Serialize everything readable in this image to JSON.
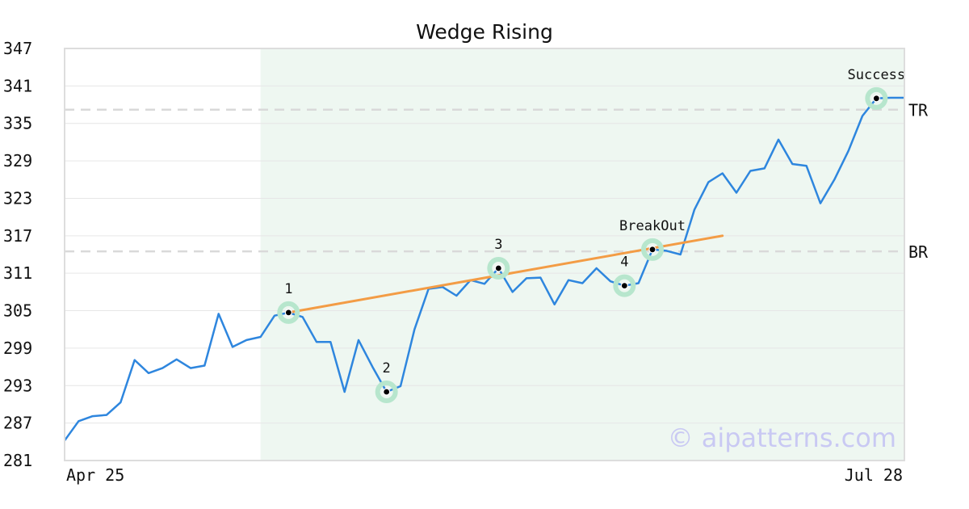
{
  "chart_data": {
    "type": "line",
    "title": "Wedge Rising",
    "xlabel": "",
    "ylabel": "",
    "ylim": [
      281,
      347
    ],
    "yticks": [
      281,
      287,
      293,
      299,
      305,
      311,
      317,
      323,
      329,
      335,
      341,
      347
    ],
    "x_tick_labels": [
      "Apr 25",
      "Jul 28"
    ],
    "grid": "horizontal",
    "series": [
      {
        "color": "#2e86de",
        "values": [
          284.2,
          287.3,
          288.1,
          288.3,
          290.3,
          297.1,
          295.0,
          295.8,
          297.2,
          295.8,
          296.2,
          304.5,
          299.2,
          300.3,
          300.8,
          304.2,
          304.7,
          304.0,
          300.0,
          300.0,
          292.0,
          300.3,
          296.0,
          292.0,
          292.9,
          302.0,
          308.5,
          308.8,
          307.4,
          309.9,
          309.3,
          311.8,
          308.0,
          310.2,
          310.3,
          306.0,
          309.9,
          309.4,
          311.8,
          309.7,
          309.0,
          309.4,
          314.8,
          314.6,
          314.0,
          321.2,
          325.6,
          327.0,
          323.9,
          327.4,
          327.8,
          332.4,
          328.5,
          328.2,
          322.2,
          326.0,
          330.6,
          336.2,
          339.0,
          339.1,
          339.1
        ]
      }
    ],
    "highlight_region": {
      "x_start": 14,
      "x_end": 60,
      "color": "#eef7f1"
    },
    "trendline": {
      "color": "#f39c45",
      "points": [
        {
          "x": 16,
          "y": 304.7
        },
        {
          "x": 47,
          "y": 317.0
        }
      ]
    },
    "pattern_points": [
      {
        "x": 16,
        "y": 304.7,
        "label": "1"
      },
      {
        "x": 23,
        "y": 292.0,
        "label": "2"
      },
      {
        "x": 31,
        "y": 311.8,
        "label": "3"
      },
      {
        "x": 40,
        "y": 309.0,
        "label": "4"
      },
      {
        "x": 42,
        "y": 314.8,
        "label": "BreakOut"
      },
      {
        "x": 58,
        "y": 339.0,
        "label": "Success"
      }
    ],
    "horizontal_lines": [
      {
        "y": 337.2,
        "label": "TR"
      },
      {
        "y": 314.5,
        "label": "BR"
      }
    ],
    "watermark": "© aipatterns.com"
  }
}
